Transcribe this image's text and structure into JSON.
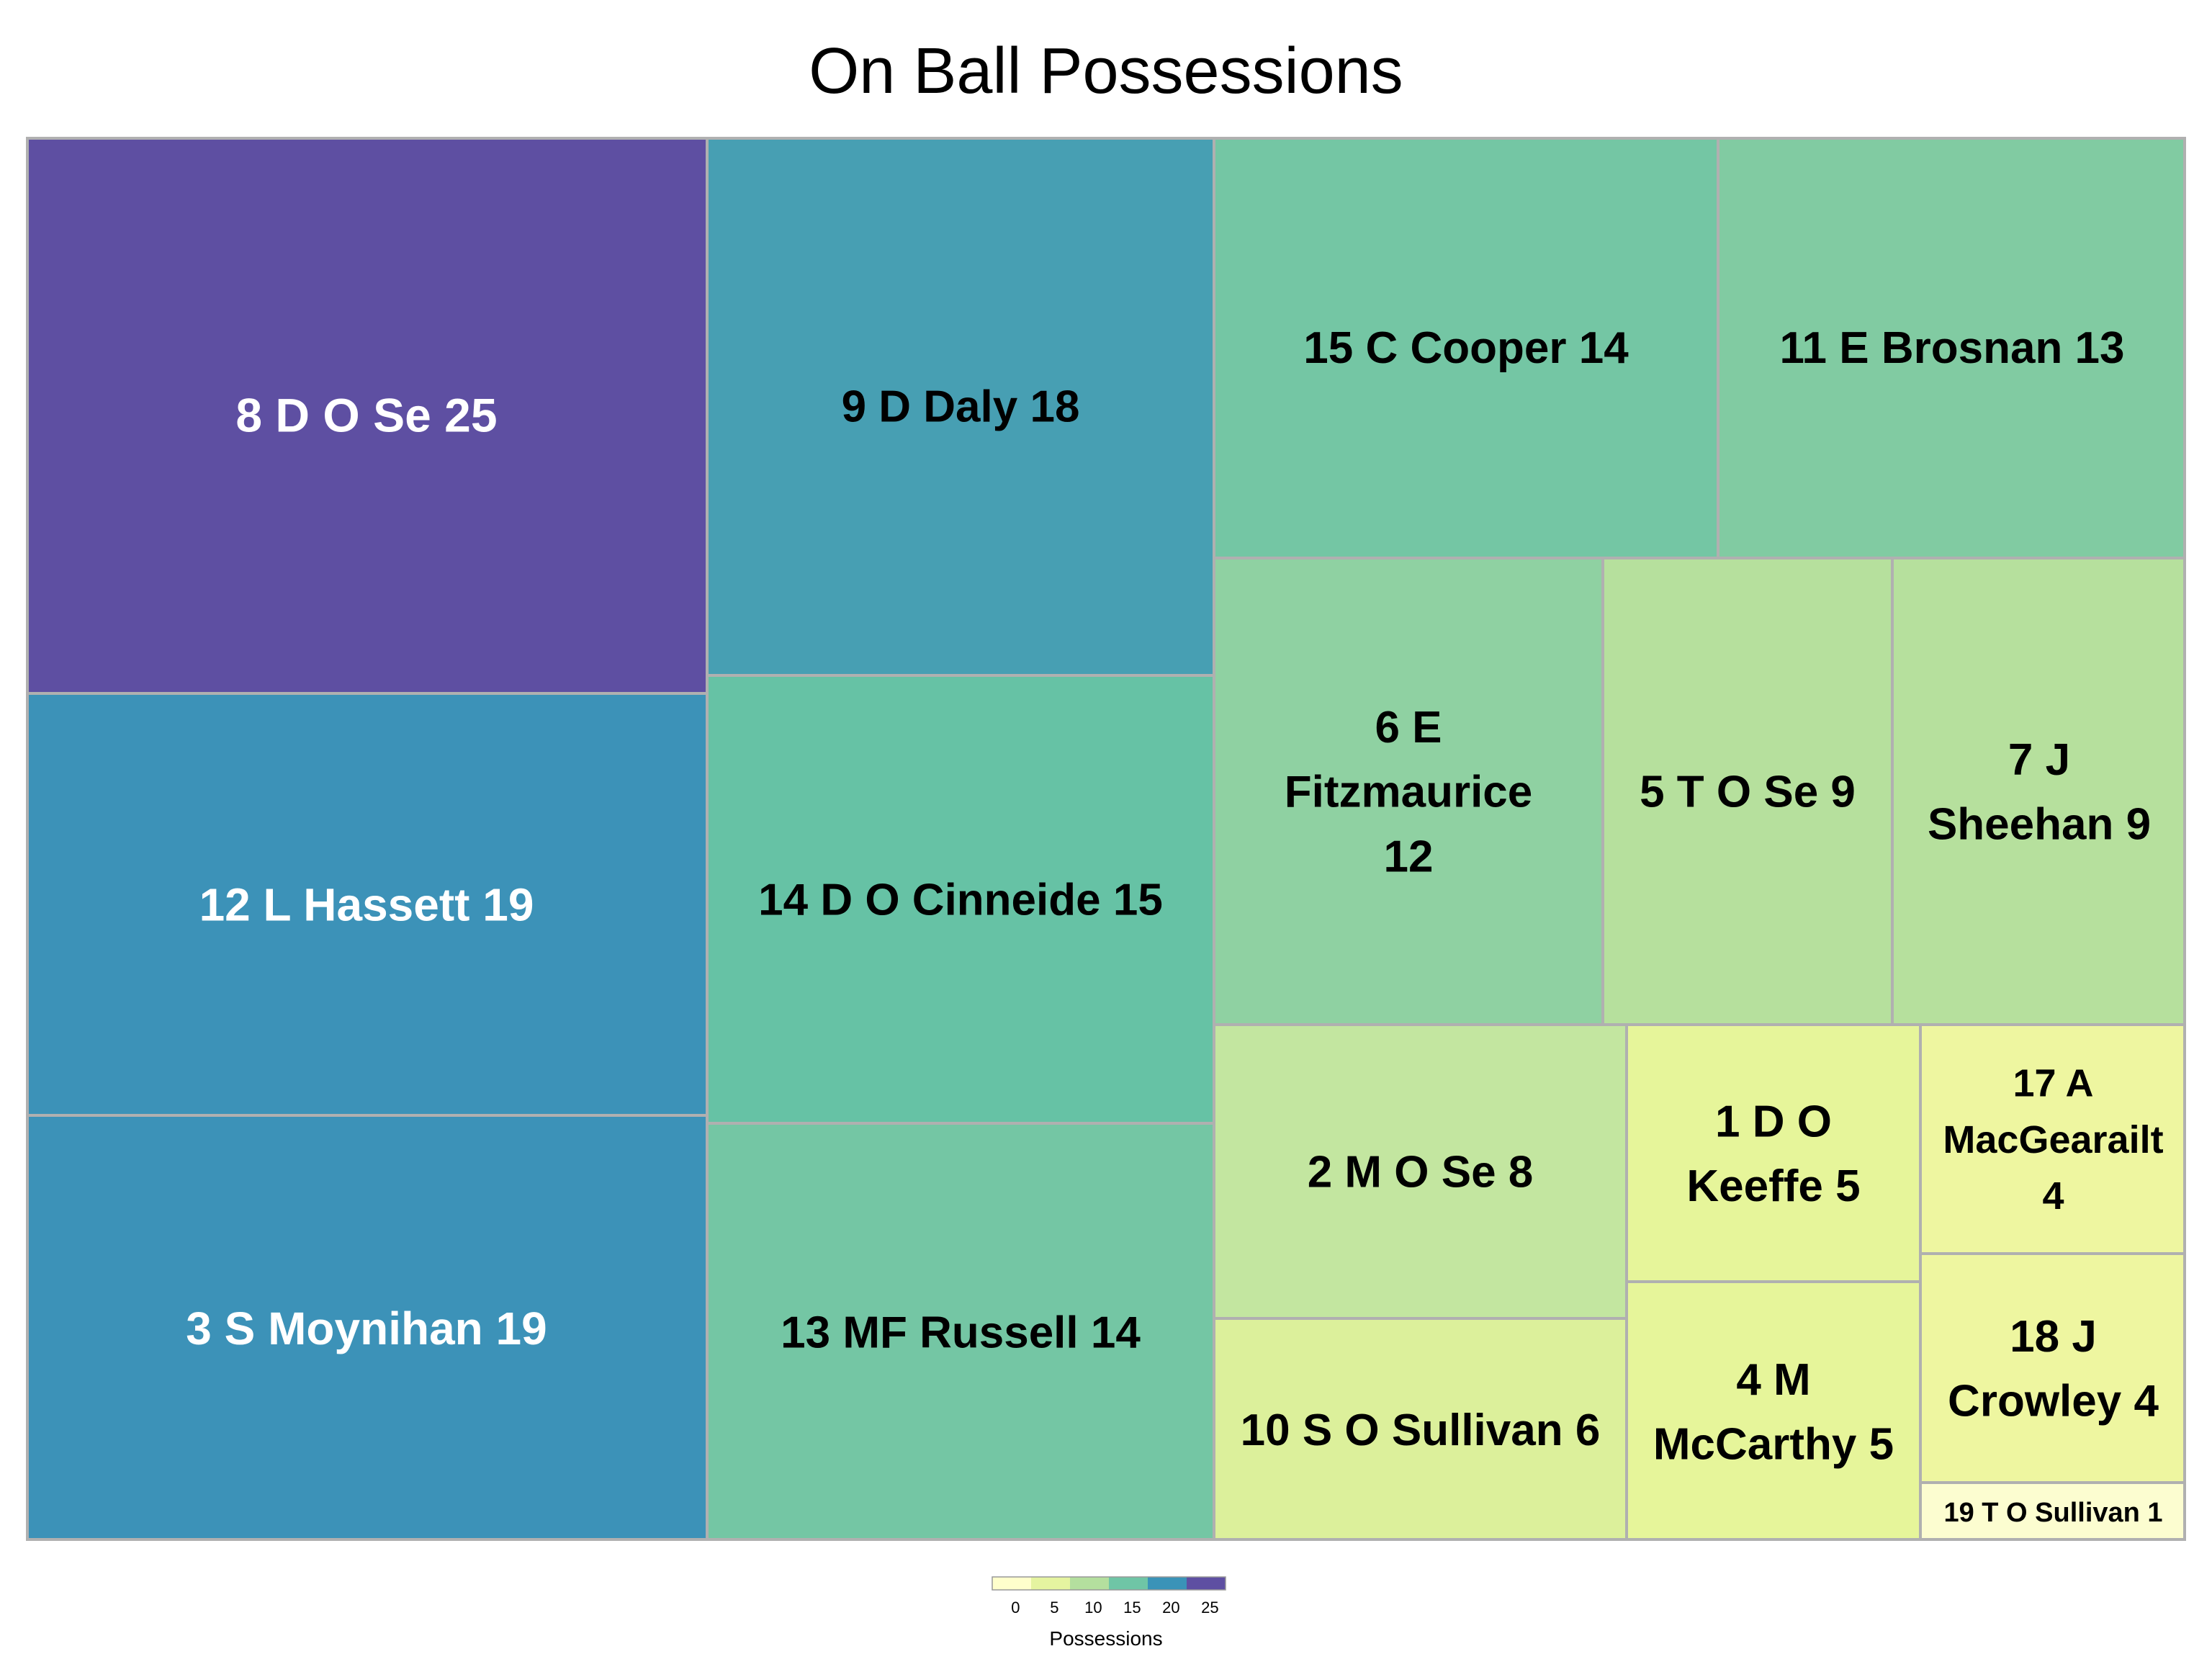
{
  "chart_data": {
    "type": "treemap",
    "title": "On Ball Possessions",
    "color_legend": {
      "title": "Possessions",
      "ticks": [
        "0",
        "5",
        "10",
        "15",
        "20",
        "25"
      ],
      "colors": [
        "#ffffcc",
        "#e5f4a0",
        "#b4df9e",
        "#6fc5a6",
        "#3a93b8",
        "#5e4fa2"
      ]
    },
    "items": [
      {
        "label": "8 D O Se 25",
        "value": 25,
        "color": "#5e4fa2",
        "text_color": "#ffffff"
      },
      {
        "label": "12 L Hassett 19",
        "value": 19,
        "color": "#3c92b8",
        "text_color": "#ffffff"
      },
      {
        "label": "3 S Moynihan 19",
        "value": 19,
        "color": "#3c92b8",
        "text_color": "#ffffff"
      },
      {
        "label": "9 D Daly 18",
        "value": 18,
        "color": "#479fb3",
        "text_color": "#000000"
      },
      {
        "label": "14 D O Cinneide 15",
        "value": 15,
        "color": "#66c2a5",
        "text_color": "#000000"
      },
      {
        "label": "13 MF Russell 14",
        "value": 14,
        "color": "#74c6a4",
        "text_color": "#000000"
      },
      {
        "label": "15 C Cooper 14",
        "value": 14,
        "color": "#74c6a4",
        "text_color": "#000000"
      },
      {
        "label": "11 E Brosnan 13",
        "value": 13,
        "color": "#81cba2",
        "text_color": "#000000"
      },
      {
        "label": "6 E Fitzmaurice 12",
        "value": 12,
        "color": "#8fd1a2",
        "text_color": "#000000"
      },
      {
        "label": "5 T O Se 9",
        "value": 9,
        "color": "#b6e09d",
        "text_color": "#000000"
      },
      {
        "label": "7 J Sheehan 9",
        "value": 9,
        "color": "#b6e09d",
        "text_color": "#000000"
      },
      {
        "label": "2 M O Se 8",
        "value": 8,
        "color": "#c3e6a0",
        "text_color": "#000000"
      },
      {
        "label": "10 S O Sullivan 6",
        "value": 6,
        "color": "#dcf09b",
        "text_color": "#000000"
      },
      {
        "label": "1 D O Keeffe 5",
        "value": 5,
        "color": "#e6f59a",
        "text_color": "#000000"
      },
      {
        "label": "4 M McCarthy 5",
        "value": 5,
        "color": "#e6f59a",
        "text_color": "#000000"
      },
      {
        "label": "17 A MacGearailt 4",
        "value": 4,
        "color": "#eef6a0",
        "text_color": "#000000"
      },
      {
        "label": "18 J Crowley 4",
        "value": 4,
        "color": "#eef6a0",
        "text_color": "#000000"
      },
      {
        "label": "19 T O Sullivan 1",
        "value": 1,
        "color": "#fcfdd0",
        "text_color": "#000000"
      }
    ]
  }
}
